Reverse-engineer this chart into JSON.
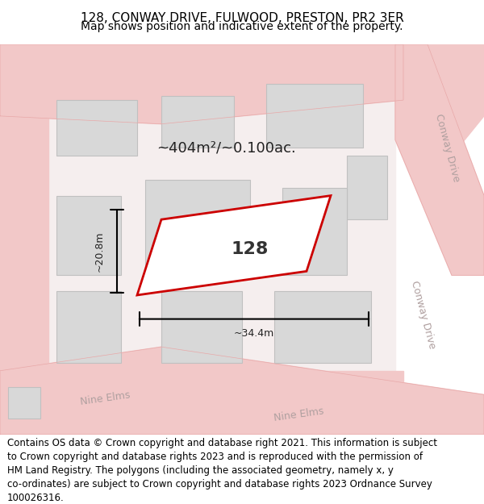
{
  "title_line1": "128, CONWAY DRIVE, FULWOOD, PRESTON, PR2 3ER",
  "title_line2": "Map shows position and indicative extent of the property.",
  "footer_text": "Contains OS data © Crown copyright and database right 2021. This information is subject\nto Crown copyright and database rights 2023 and is reproduced with the permission of\nHM Land Registry. The polygons (including the associated geometry, namely x, y\nco-ordinates) are subject to Crown copyright and database rights 2023 Ordnance Survey\n100026316.",
  "map_bg": "#f5f0f0",
  "road_color": "#f2c8c8",
  "road_outline": "#e8a8a8",
  "building_fill": "#d8d8d8",
  "building_outline": "#bbbbbb",
  "plot_outline": "#cc0000",
  "plot_fill": "#ffffff",
  "annotation_color": "#111111",
  "street_label_color": "#aaaaaa",
  "area_label": "~404m²/~0.100ac.",
  "plot_label": "128",
  "dim_width": "~34.4m",
  "dim_height": "~20.8m",
  "title_fontsize": 11,
  "subtitle_fontsize": 10,
  "footer_fontsize": 8.5
}
